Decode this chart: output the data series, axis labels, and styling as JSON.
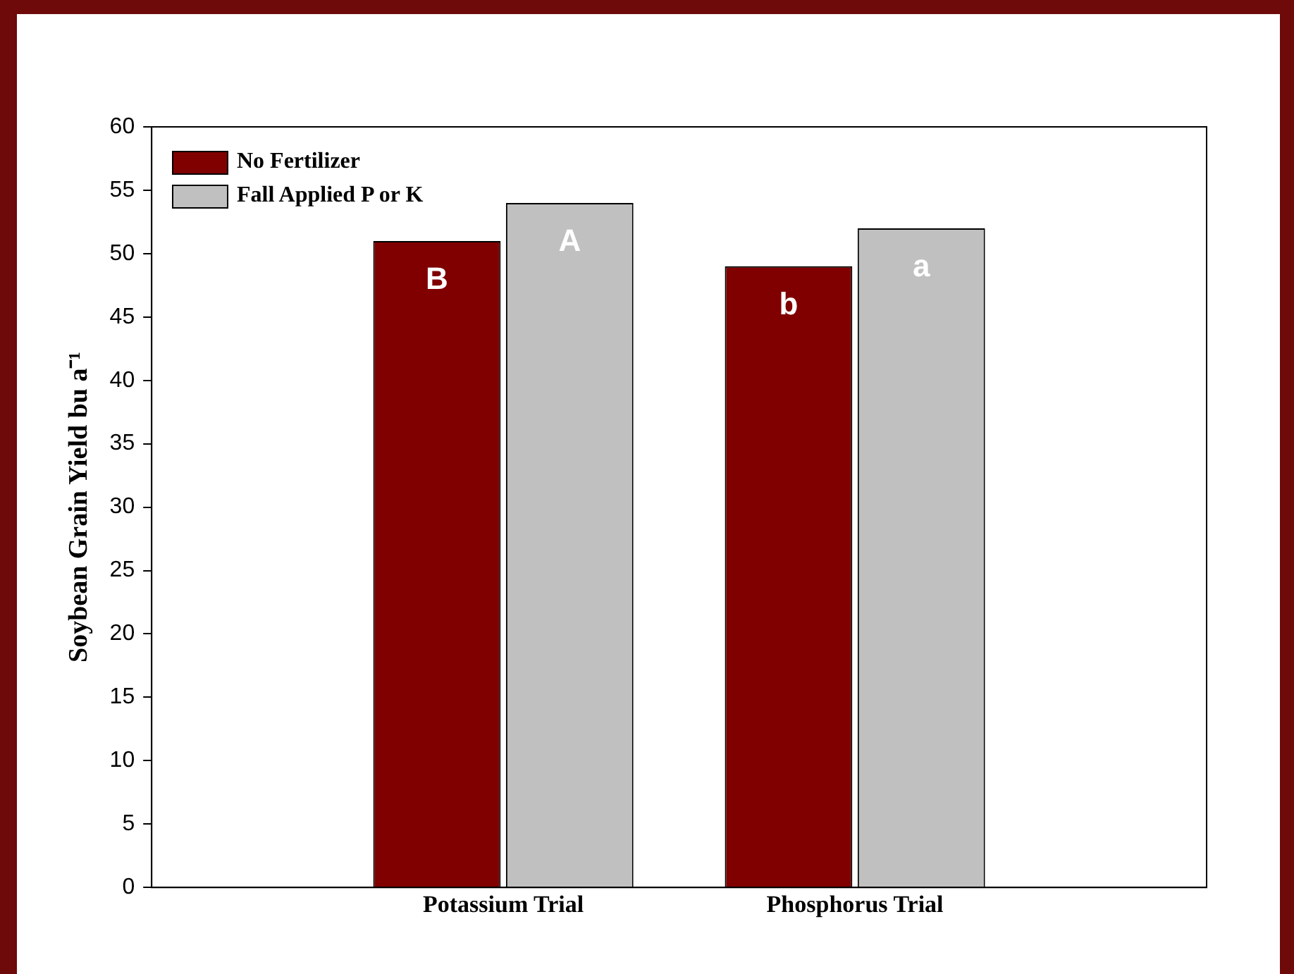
{
  "chart_data": {
    "type": "bar",
    "ylabel": "Soybean Grain Yield bu a⁻¹",
    "categories": [
      "Potassium Trial",
      "Phosphorus Trial"
    ],
    "series": [
      {
        "name": "No Fertilizer",
        "color": "#800000",
        "values": [
          51,
          49
        ]
      },
      {
        "name": "Fall Applied P or K",
        "color": "#c0c0c0",
        "values": [
          54,
          52
        ]
      }
    ],
    "ylim": [
      0,
      60
    ],
    "yticks": [
      0,
      5,
      10,
      15,
      20,
      25,
      30,
      35,
      40,
      45,
      50,
      55,
      60
    ],
    "grid": false,
    "legend": "top left",
    "annotations": [
      "B",
      "A",
      "b",
      "a"
    ]
  }
}
